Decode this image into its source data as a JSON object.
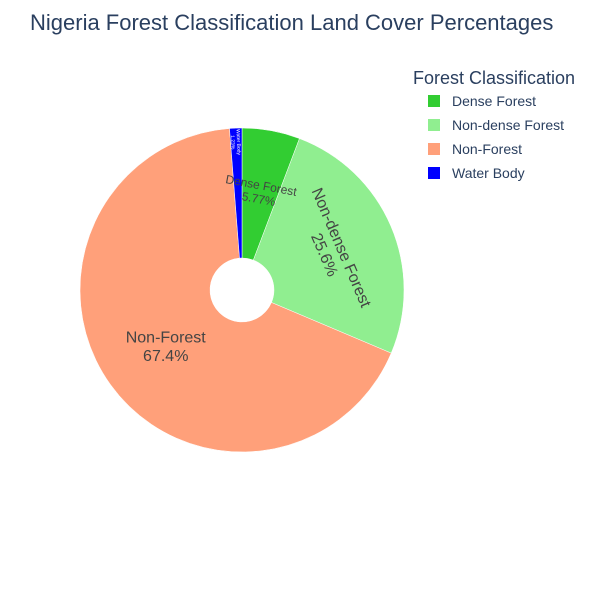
{
  "chart_data": {
    "type": "pie",
    "title": "Nigeria Forest Classification Land Cover Percentages",
    "legend_title": "Forest Classification",
    "legend_position": "top-right",
    "hole": true,
    "slices": [
      {
        "label": "Dense Forest",
        "value": 5.77,
        "display": "5.77%",
        "color": "#32cd32"
      },
      {
        "label": "Non-dense Forest",
        "value": 25.6,
        "display": "25.6%",
        "color": "#90ee90"
      },
      {
        "label": "Non-Forest",
        "value": 67.4,
        "display": "67.4%",
        "color": "#ffa07a"
      },
      {
        "label": "Water Body",
        "value": 1.23,
        "display": "1.23%",
        "color": "#0000ff"
      }
    ]
  }
}
